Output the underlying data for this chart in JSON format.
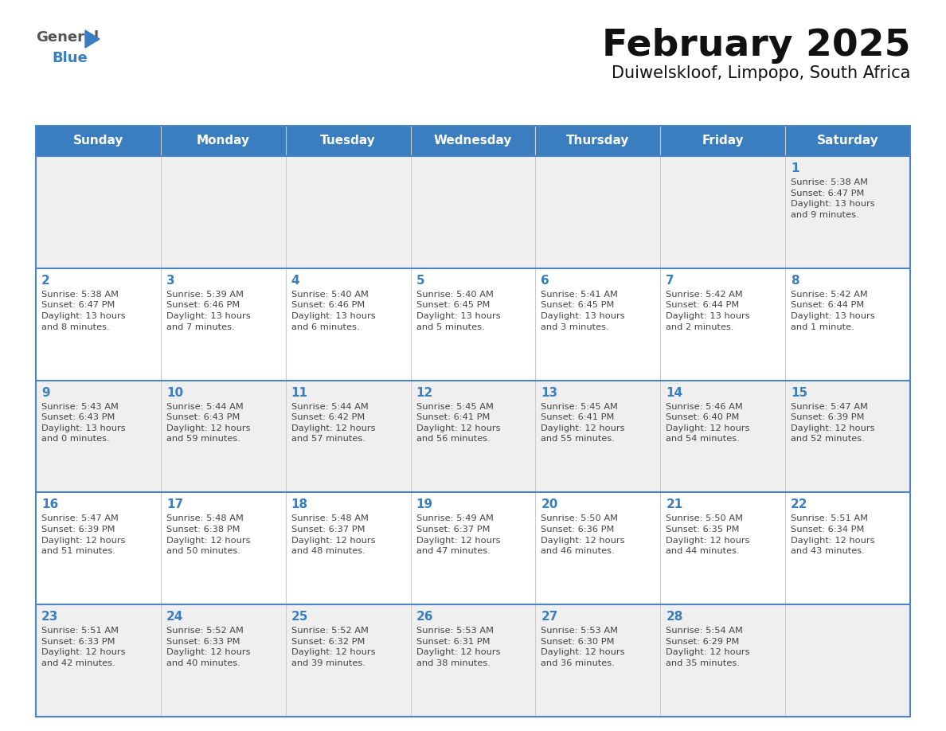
{
  "title": "February 2025",
  "subtitle": "Duiwelskloof, Limpopo, South Africa",
  "days_of_week": [
    "Sunday",
    "Monday",
    "Tuesday",
    "Wednesday",
    "Thursday",
    "Friday",
    "Saturday"
  ],
  "header_bg": "#3a7ebf",
  "header_text": "#ffffff",
  "row_bg_light": "#efefef",
  "row_bg_white": "#ffffff",
  "cell_border_color": "#4a86c4",
  "cell_divider_color": "#cccccc",
  "day_number_color": "#3a7ebf",
  "info_text_color": "#444444",
  "title_color": "#111111",
  "subtitle_color": "#111111",
  "logo_general_color": "#555555",
  "logo_blue_color": "#3a7ebf",
  "logo_triangle_color": "#3a7ebf",
  "calendar": [
    [
      {
        "day": "",
        "info": ""
      },
      {
        "day": "",
        "info": ""
      },
      {
        "day": "",
        "info": ""
      },
      {
        "day": "",
        "info": ""
      },
      {
        "day": "",
        "info": ""
      },
      {
        "day": "",
        "info": ""
      },
      {
        "day": "1",
        "info": "Sunrise: 5:38 AM\nSunset: 6:47 PM\nDaylight: 13 hours\nand 9 minutes."
      }
    ],
    [
      {
        "day": "2",
        "info": "Sunrise: 5:38 AM\nSunset: 6:47 PM\nDaylight: 13 hours\nand 8 minutes."
      },
      {
        "day": "3",
        "info": "Sunrise: 5:39 AM\nSunset: 6:46 PM\nDaylight: 13 hours\nand 7 minutes."
      },
      {
        "day": "4",
        "info": "Sunrise: 5:40 AM\nSunset: 6:46 PM\nDaylight: 13 hours\nand 6 minutes."
      },
      {
        "day": "5",
        "info": "Sunrise: 5:40 AM\nSunset: 6:45 PM\nDaylight: 13 hours\nand 5 minutes."
      },
      {
        "day": "6",
        "info": "Sunrise: 5:41 AM\nSunset: 6:45 PM\nDaylight: 13 hours\nand 3 minutes."
      },
      {
        "day": "7",
        "info": "Sunrise: 5:42 AM\nSunset: 6:44 PM\nDaylight: 13 hours\nand 2 minutes."
      },
      {
        "day": "8",
        "info": "Sunrise: 5:42 AM\nSunset: 6:44 PM\nDaylight: 13 hours\nand 1 minute."
      }
    ],
    [
      {
        "day": "9",
        "info": "Sunrise: 5:43 AM\nSunset: 6:43 PM\nDaylight: 13 hours\nand 0 minutes."
      },
      {
        "day": "10",
        "info": "Sunrise: 5:44 AM\nSunset: 6:43 PM\nDaylight: 12 hours\nand 59 minutes."
      },
      {
        "day": "11",
        "info": "Sunrise: 5:44 AM\nSunset: 6:42 PM\nDaylight: 12 hours\nand 57 minutes."
      },
      {
        "day": "12",
        "info": "Sunrise: 5:45 AM\nSunset: 6:41 PM\nDaylight: 12 hours\nand 56 minutes."
      },
      {
        "day": "13",
        "info": "Sunrise: 5:45 AM\nSunset: 6:41 PM\nDaylight: 12 hours\nand 55 minutes."
      },
      {
        "day": "14",
        "info": "Sunrise: 5:46 AM\nSunset: 6:40 PM\nDaylight: 12 hours\nand 54 minutes."
      },
      {
        "day": "15",
        "info": "Sunrise: 5:47 AM\nSunset: 6:39 PM\nDaylight: 12 hours\nand 52 minutes."
      }
    ],
    [
      {
        "day": "16",
        "info": "Sunrise: 5:47 AM\nSunset: 6:39 PM\nDaylight: 12 hours\nand 51 minutes."
      },
      {
        "day": "17",
        "info": "Sunrise: 5:48 AM\nSunset: 6:38 PM\nDaylight: 12 hours\nand 50 minutes."
      },
      {
        "day": "18",
        "info": "Sunrise: 5:48 AM\nSunset: 6:37 PM\nDaylight: 12 hours\nand 48 minutes."
      },
      {
        "day": "19",
        "info": "Sunrise: 5:49 AM\nSunset: 6:37 PM\nDaylight: 12 hours\nand 47 minutes."
      },
      {
        "day": "20",
        "info": "Sunrise: 5:50 AM\nSunset: 6:36 PM\nDaylight: 12 hours\nand 46 minutes."
      },
      {
        "day": "21",
        "info": "Sunrise: 5:50 AM\nSunset: 6:35 PM\nDaylight: 12 hours\nand 44 minutes."
      },
      {
        "day": "22",
        "info": "Sunrise: 5:51 AM\nSunset: 6:34 PM\nDaylight: 12 hours\nand 43 minutes."
      }
    ],
    [
      {
        "day": "23",
        "info": "Sunrise: 5:51 AM\nSunset: 6:33 PM\nDaylight: 12 hours\nand 42 minutes."
      },
      {
        "day": "24",
        "info": "Sunrise: 5:52 AM\nSunset: 6:33 PM\nDaylight: 12 hours\nand 40 minutes."
      },
      {
        "day": "25",
        "info": "Sunrise: 5:52 AM\nSunset: 6:32 PM\nDaylight: 12 hours\nand 39 minutes."
      },
      {
        "day": "26",
        "info": "Sunrise: 5:53 AM\nSunset: 6:31 PM\nDaylight: 12 hours\nand 38 minutes."
      },
      {
        "day": "27",
        "info": "Sunrise: 5:53 AM\nSunset: 6:30 PM\nDaylight: 12 hours\nand 36 minutes."
      },
      {
        "day": "28",
        "info": "Sunrise: 5:54 AM\nSunset: 6:29 PM\nDaylight: 12 hours\nand 35 minutes."
      },
      {
        "day": "",
        "info": ""
      }
    ]
  ],
  "figsize": [
    11.88,
    9.18
  ],
  "dpi": 100
}
